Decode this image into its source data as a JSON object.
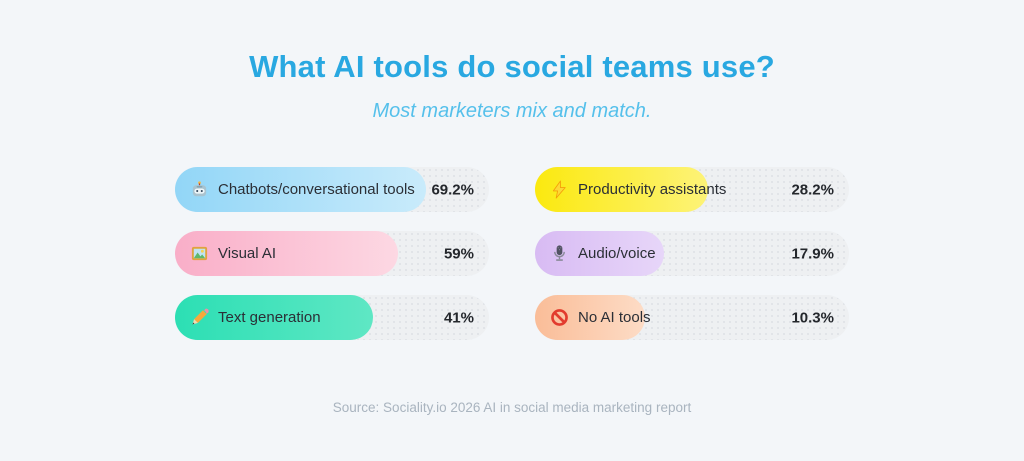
{
  "page": {
    "title": "What AI tools do social teams use?",
    "subtitle": "Most marketers mix and match.",
    "source": "Source: Sociality.io 2026 AI in social media marketing report"
  },
  "colors": {
    "background": "#f3f6f9",
    "title_text": "#29a8e1",
    "subtitle_text": "#55c0eb",
    "source_text": "#a9b4bf",
    "bar_track": "#eef0f2",
    "label_text": "#2b2f36",
    "value_text": "#24272c"
  },
  "chart_data": {
    "type": "bar",
    "orientation": "horizontal",
    "unit": "percent",
    "grid": false,
    "legend_position": "none",
    "title": "What AI tools do social teams use?",
    "subtitle": "Most marketers mix and match.",
    "source": "Source: Sociality.io 2026 AI in social media marketing report",
    "categories": [
      "Chatbots/conversational tools",
      "Productivity assistants",
      "Visual AI",
      "Audio/voice",
      "Text generation",
      "No AI tools"
    ],
    "values": [
      69.2,
      28.2,
      59,
      17.9,
      41,
      10.3
    ],
    "items": [
      {
        "label": "Chatbots/conversational tools",
        "icon": "robot-icon",
        "value": 69.2,
        "value_label": "69.2%",
        "fill_pct": 80,
        "color_start": "#92d6f7",
        "color_end": "#c9ebfb"
      },
      {
        "label": "Productivity assistants",
        "icon": "lightning-icon",
        "value": 28.2,
        "value_label": "28.2%",
        "fill_pct": 55,
        "color_start": "#fbe90f",
        "color_end": "#fdf378"
      },
      {
        "label": "Visual AI",
        "icon": "framed-picture-icon",
        "value": 59,
        "value_label": "59%",
        "fill_pct": 71,
        "color_start": "#f9aec8",
        "color_end": "#fdd8e3"
      },
      {
        "label": "Audio/voice",
        "icon": "microphone-icon",
        "value": 17.9,
        "value_label": "17.9%",
        "fill_pct": 41,
        "color_start": "#d8bbf3",
        "color_end": "#e7d6f9"
      },
      {
        "label": "Text generation",
        "icon": "pencil-icon",
        "value": 41,
        "value_label": "41%",
        "fill_pct": 63,
        "color_start": "#2cdfb4",
        "color_end": "#5fe7c4"
      },
      {
        "label": "No AI tools",
        "icon": "prohibited-icon",
        "value": 10.3,
        "value_label": "10.3%",
        "fill_pct": 35,
        "color_start": "#fabd98",
        "color_end": "#fddcc6"
      }
    ]
  }
}
